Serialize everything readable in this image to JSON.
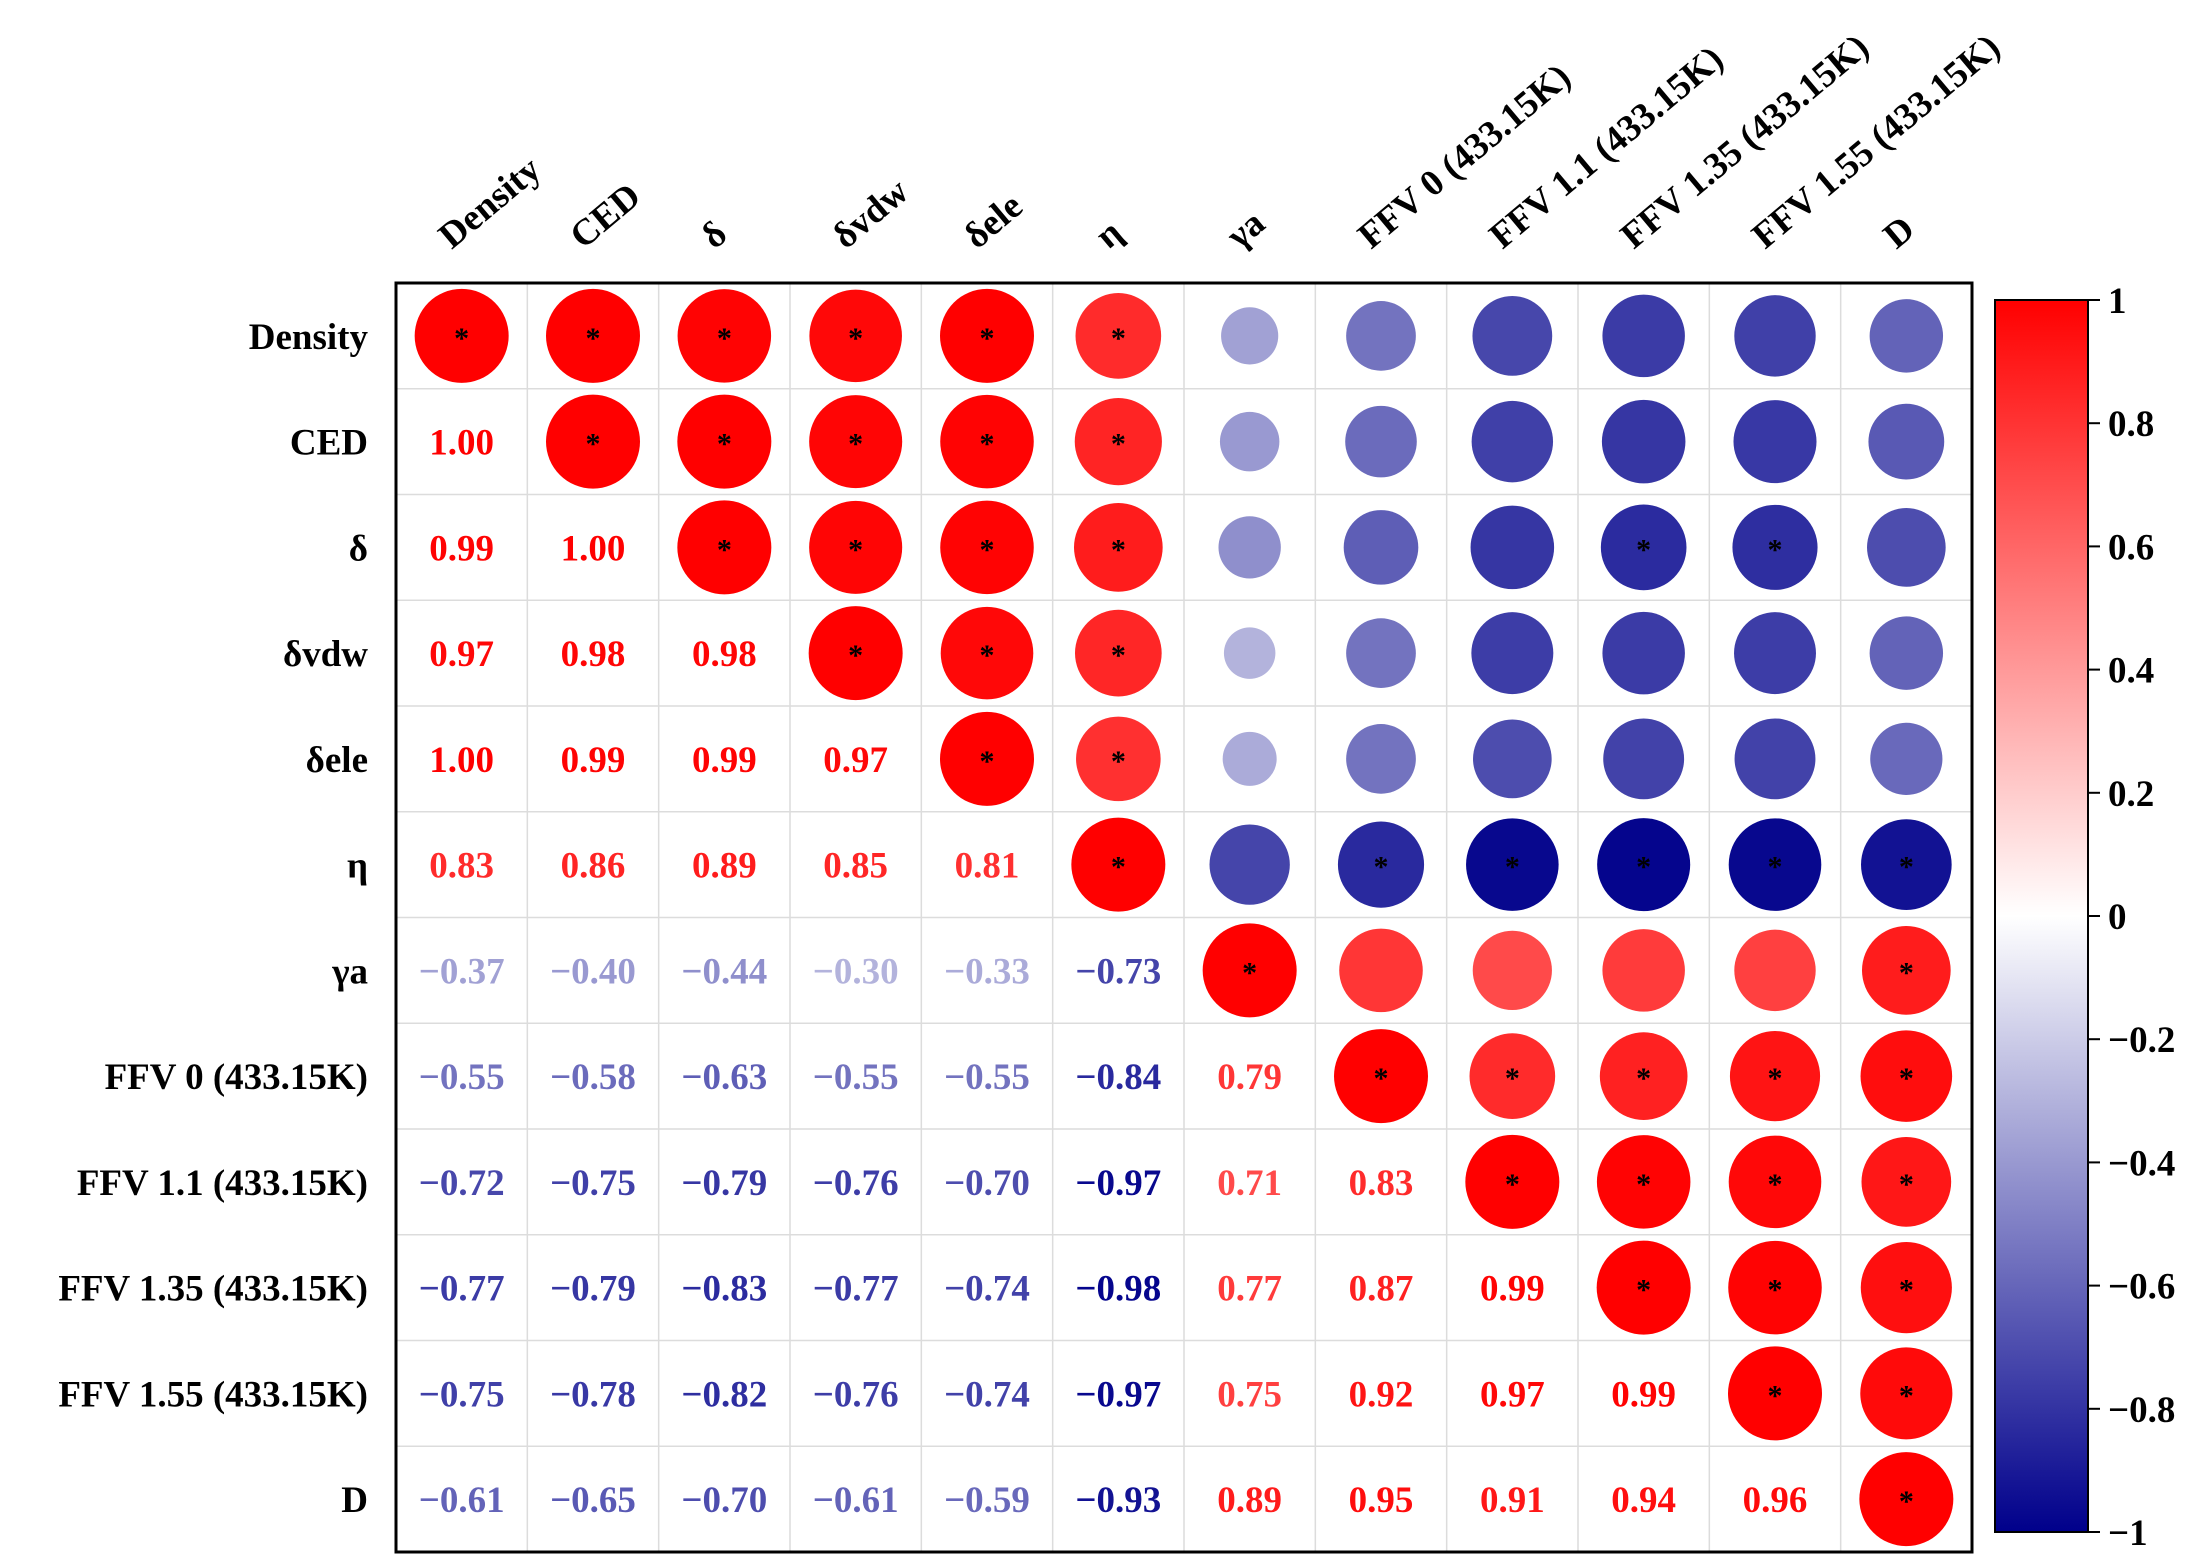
{
  "chart_data": {
    "type": "heatmap",
    "title": "",
    "variables": [
      "Density",
      "CED",
      "δ",
      "δvdw",
      "δele",
      "η",
      "γa",
      "FFV 0 (433.15K)",
      "FFV 1.1 (433.15K)",
      "FFV 1.35 (433.15K)",
      "FFV 1.55 (433.15K)",
      "D"
    ],
    "lower_triangle_values": [
      [],
      [
        1.0
      ],
      [
        0.99,
        1.0
      ],
      [
        0.97,
        0.98,
        0.98
      ],
      [
        1.0,
        0.99,
        0.99,
        0.97
      ],
      [
        0.83,
        0.86,
        0.89,
        0.85,
        0.81
      ],
      [
        -0.37,
        -0.4,
        -0.44,
        -0.3,
        -0.33,
        -0.73
      ],
      [
        -0.55,
        -0.58,
        -0.63,
        -0.55,
        -0.55,
        -0.84,
        0.79
      ],
      [
        -0.72,
        -0.75,
        -0.79,
        -0.76,
        -0.7,
        -0.97,
        0.71,
        0.83
      ],
      [
        -0.77,
        -0.79,
        -0.83,
        -0.77,
        -0.74,
        -0.98,
        0.77,
        0.87,
        0.99
      ],
      [
        -0.75,
        -0.78,
        -0.82,
        -0.76,
        -0.74,
        -0.97,
        0.75,
        0.92,
        0.97,
        0.99
      ],
      [
        -0.61,
        -0.65,
        -0.7,
        -0.61,
        -0.59,
        -0.93,
        0.89,
        0.95,
        0.91,
        0.94,
        0.96
      ]
    ],
    "lower_triangle_labels": [
      [],
      [
        "1.00"
      ],
      [
        "0.99",
        "1.00"
      ],
      [
        "0.97",
        "0.98",
        "0.98"
      ],
      [
        "1.00",
        "0.99",
        "0.99",
        "0.97"
      ],
      [
        "0.83",
        "0.86",
        "0.89",
        "0.85",
        "0.81"
      ],
      [
        "-0.37",
        "-0.40",
        "-0.44",
        "-0.30",
        "-0.33",
        "-0.73"
      ],
      [
        "-0.55",
        "-0.58",
        "-0.63",
        "-0.55",
        "-0.55",
        "-0.84",
        "0.79"
      ],
      [
        "-0.72",
        "-0.75",
        "-0.79",
        "-0.76",
        "-0.70",
        "-0.97",
        "0.71",
        "0.83"
      ],
      [
        "-0.77",
        "-0.79",
        "-0.83",
        "-0.77",
        "-0.74",
        "-0.98",
        "0.77",
        "0.87",
        "0.99"
      ],
      [
        "-0.75",
        "-0.78",
        "-0.82",
        "-0.76",
        "-0.74",
        "-0.97",
        "0.75",
        "0.92",
        "0.97",
        "0.99"
      ],
      [
        "-0.61",
        "-0.65",
        "-0.70",
        "-0.61",
        "-0.59",
        "-0.93",
        "0.89",
        "0.95",
        "0.91",
        "0.94",
        "0.96"
      ]
    ],
    "significance_marker": "*",
    "significant_upper_cells": [
      [
        0,
        0
      ],
      [
        0,
        1
      ],
      [
        0,
        2
      ],
      [
        0,
        3
      ],
      [
        0,
        4
      ],
      [
        0,
        5
      ],
      [
        1,
        1
      ],
      [
        1,
        2
      ],
      [
        1,
        3
      ],
      [
        1,
        4
      ],
      [
        1,
        5
      ],
      [
        2,
        2
      ],
      [
        2,
        3
      ],
      [
        2,
        4
      ],
      [
        2,
        5
      ],
      [
        2,
        9
      ],
      [
        2,
        10
      ],
      [
        3,
        3
      ],
      [
        3,
        4
      ],
      [
        3,
        5
      ],
      [
        4,
        4
      ],
      [
        4,
        5
      ],
      [
        5,
        5
      ],
      [
        5,
        7
      ],
      [
        5,
        8
      ],
      [
        5,
        9
      ],
      [
        5,
        10
      ],
      [
        5,
        11
      ],
      [
        6,
        6
      ],
      [
        6,
        11
      ],
      [
        7,
        7
      ],
      [
        7,
        8
      ],
      [
        7,
        9
      ],
      [
        7,
        10
      ],
      [
        7,
        11
      ],
      [
        8,
        8
      ],
      [
        8,
        9
      ],
      [
        8,
        10
      ],
      [
        8,
        11
      ],
      [
        9,
        9
      ],
      [
        9,
        10
      ],
      [
        9,
        11
      ],
      [
        10,
        10
      ],
      [
        10,
        11
      ],
      [
        11,
        11
      ]
    ],
    "upper_display": "circle area scaled by |r|, colored by r; diagonal r = 1",
    "lower_display": "coefficient text colored by r",
    "colorbar": {
      "range": [
        -1,
        1
      ],
      "ticks": [
        1,
        0.8,
        0.6,
        0.4,
        0.2,
        0,
        -0.2,
        -0.4,
        -0.6,
        -0.8,
        -1
      ],
      "tick_labels": [
        "1",
        "0.8",
        "0.6",
        "0.4",
        "0.2",
        "0",
        "-0.2",
        "-0.4",
        "-0.6",
        "-0.8",
        "-1"
      ],
      "colors": {
        "negative": "#00008b",
        "middle": "#ffffff",
        "positive": "#ff0000"
      }
    }
  }
}
